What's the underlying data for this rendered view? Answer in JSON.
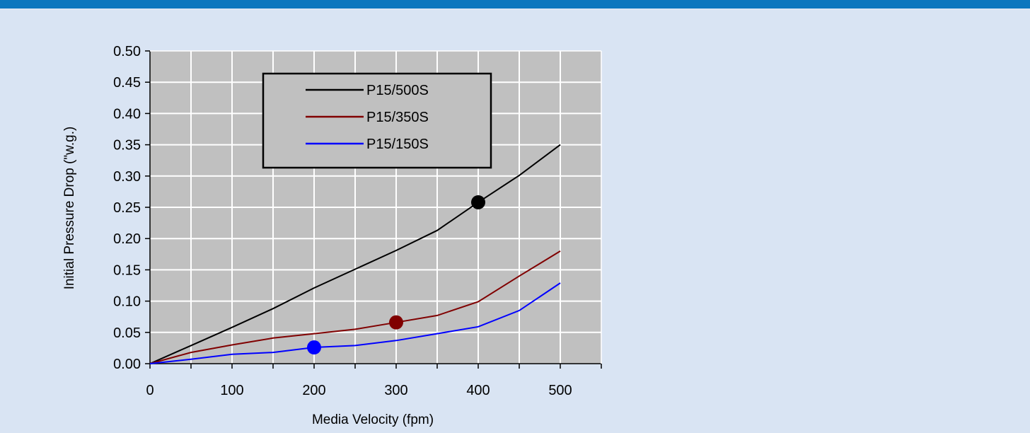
{
  "chart_data": {
    "type": "line",
    "title": "",
    "xlabel": "Media Velocity (fpm)",
    "ylabel": "Initial Pressure Drop (\"w.g.)",
    "xlim": [
      0,
      550
    ],
    "ylim": [
      0,
      0.5
    ],
    "x_ticks": [
      0,
      100,
      200,
      300,
      400,
      500
    ],
    "x_tick_labels": [
      "0",
      "100",
      "200",
      "300",
      "400",
      "500"
    ],
    "y_ticks": [
      0,
      0.05,
      0.1,
      0.15,
      0.2,
      0.25,
      0.3,
      0.35,
      0.4,
      0.45,
      0.5
    ],
    "y_tick_labels": [
      "0.00",
      "0.05",
      "0.10",
      "0.15",
      "0.20",
      "0.25",
      "0.30",
      "0.35",
      "0.40",
      "0.45",
      "0.50"
    ],
    "grid": true,
    "legend_position": "top-center",
    "x": [
      0,
      50,
      100,
      150,
      200,
      250,
      300,
      350,
      400,
      450,
      500
    ],
    "series": [
      {
        "name": "P15/500S",
        "color": "#000000",
        "values": [
          0,
          0.029,
          0.058,
          0.088,
          0.121,
          0.151,
          0.181,
          0.213,
          0.258,
          0.301,
          0.35
        ],
        "marker": {
          "x": 400,
          "y": 0.258
        }
      },
      {
        "name": "P15/350S",
        "color": "#800000",
        "values": [
          0,
          0.018,
          0.03,
          0.041,
          0.048,
          0.055,
          0.066,
          0.077,
          0.099,
          0.14,
          0.18
        ],
        "marker": {
          "x": 300,
          "y": 0.066
        }
      },
      {
        "name": "P15/150S",
        "color": "#0000ff",
        "values": [
          0,
          0.007,
          0.015,
          0.018,
          0.026,
          0.029,
          0.037,
          0.048,
          0.059,
          0.085,
          0.129
        ],
        "marker": {
          "x": 200,
          "y": 0.026
        }
      }
    ]
  },
  "colors": {
    "page_background": "#d9e4f3",
    "top_bar": "#0b76be",
    "plot_background": "#c0c0c0",
    "grid": "#ffffff"
  }
}
